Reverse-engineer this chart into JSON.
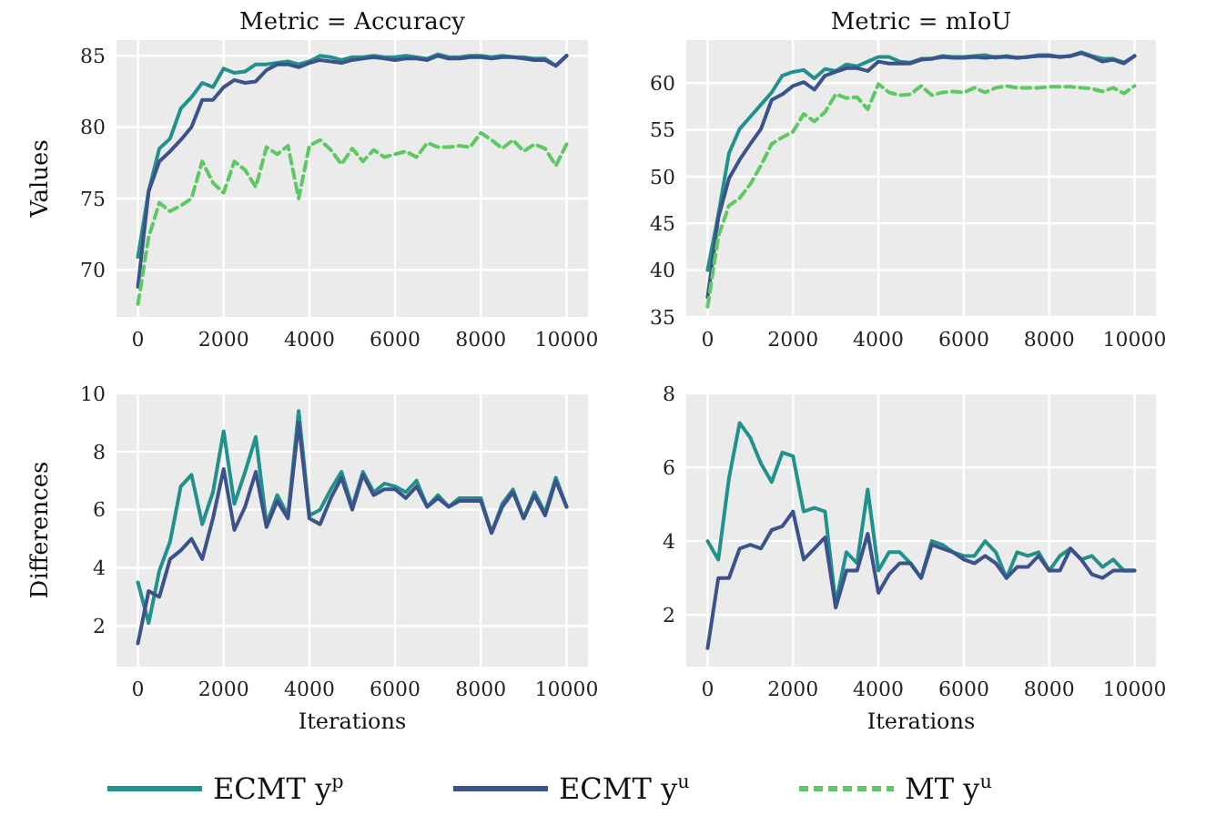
{
  "chart_data": [
    {
      "type": "line",
      "title": "Metric = Accuracy",
      "ylabel": "Values",
      "x": [
        0,
        250,
        500,
        750,
        1000,
        1250,
        1500,
        1750,
        2000,
        2250,
        2500,
        2750,
        3000,
        3250,
        3500,
        3750,
        4000,
        4250,
        4500,
        4750,
        5000,
        5250,
        5500,
        5750,
        6000,
        6250,
        6500,
        6750,
        7000,
        7250,
        7500,
        7750,
        8000,
        8250,
        8500,
        8750,
        9000,
        9250,
        9500,
        9750,
        10000
      ],
      "xlim": [
        -500,
        10500
      ],
      "xticks": [
        0,
        2000,
        4000,
        6000,
        8000,
        10000
      ],
      "ylim": [
        66.7,
        86.1
      ],
      "yticks": [
        70,
        75,
        80,
        85
      ],
      "grid": true,
      "legend": "bottom",
      "series": [
        {
          "name": "ECMT y$^{p}$",
          "color": "#21918c",
          "values": [
            70.9,
            75.5,
            78.5,
            79.2,
            81.3,
            82.1,
            83.1,
            82.8,
            84.1,
            83.8,
            83.9,
            84.4,
            84.4,
            84.5,
            84.6,
            84.4,
            84.6,
            85.0,
            84.9,
            84.7,
            84.9,
            84.9,
            85.0,
            84.9,
            84.9,
            85.0,
            84.9,
            84.8,
            85.1,
            84.9,
            84.9,
            85.0,
            85.0,
            84.9,
            85.0,
            84.9,
            84.9,
            84.8,
            84.8,
            84.3,
            85.0
          ]
        },
        {
          "name": "ECMT y$^{u}$",
          "color": "#3b528b",
          "values": [
            68.8,
            75.5,
            77.6,
            78.3,
            79.1,
            80.0,
            81.9,
            81.9,
            82.8,
            83.3,
            83.1,
            83.2,
            84.0,
            84.4,
            84.4,
            84.2,
            84.5,
            84.7,
            84.6,
            84.5,
            84.7,
            84.8,
            84.9,
            84.8,
            84.7,
            84.8,
            84.8,
            84.7,
            85.0,
            84.8,
            84.8,
            84.9,
            84.9,
            84.8,
            84.9,
            84.9,
            84.8,
            84.7,
            84.7,
            84.3,
            85.0
          ]
        },
        {
          "name": "MT y$^{u}$",
          "color": "#5ec962",
          "line_style": "dashed",
          "values": [
            67.6,
            72.3,
            74.7,
            74.1,
            74.5,
            75.0,
            77.6,
            76.1,
            75.4,
            77.6,
            77.0,
            75.8,
            78.6,
            78.1,
            78.7,
            75.0,
            78.7,
            79.1,
            78.4,
            77.4,
            78.5,
            77.6,
            78.4,
            77.9,
            78.1,
            78.3,
            77.9,
            78.9,
            78.6,
            78.6,
            78.7,
            78.6,
            79.6,
            79.1,
            78.5,
            79.1,
            78.3,
            78.8,
            78.5,
            77.3,
            78.8
          ]
        }
      ]
    },
    {
      "type": "line",
      "title": "Metric = mIoU",
      "x": [
        0,
        250,
        500,
        750,
        1000,
        1250,
        1500,
        1750,
        2000,
        2250,
        2500,
        2750,
        3000,
        3250,
        3500,
        3750,
        4000,
        4250,
        4500,
        4750,
        5000,
        5250,
        5500,
        5750,
        6000,
        6250,
        6500,
        6750,
        7000,
        7250,
        7500,
        7750,
        8000,
        8250,
        8500,
        8750,
        9000,
        9250,
        9500,
        9750,
        10000
      ],
      "xlim": [
        -500,
        10500
      ],
      "xticks": [
        0,
        2000,
        4000,
        6000,
        8000,
        10000
      ],
      "ylim": [
        35,
        64.6
      ],
      "yticks": [
        35,
        40,
        45,
        50,
        55,
        60
      ],
      "grid": true,
      "series": [
        {
          "color": "#21918c",
          "values": [
            40.0,
            45.9,
            52.5,
            55.1,
            56.4,
            57.7,
            59.0,
            60.8,
            61.2,
            61.4,
            60.5,
            61.5,
            61.3,
            62.0,
            61.8,
            62.3,
            62.8,
            62.8,
            62.3,
            62.2,
            62.6,
            62.6,
            62.9,
            62.8,
            62.8,
            62.9,
            63.0,
            62.7,
            62.9,
            62.7,
            62.8,
            63.0,
            63.0,
            62.8,
            62.9,
            63.3,
            62.9,
            62.6,
            62.6,
            62.2,
            62.9
          ]
        },
        {
          "color": "#3b528b",
          "values": [
            37.1,
            45.6,
            49.8,
            51.8,
            53.5,
            55.1,
            58.2,
            58.8,
            59.7,
            60.1,
            59.3,
            60.8,
            61.2,
            61.6,
            61.6,
            61.3,
            62.3,
            62.1,
            62.1,
            62.1,
            62.5,
            62.6,
            62.8,
            62.7,
            62.7,
            62.8,
            62.7,
            62.8,
            62.8,
            62.7,
            62.8,
            62.9,
            62.9,
            62.8,
            62.9,
            63.2,
            62.8,
            62.3,
            62.5,
            62.1,
            62.9
          ]
        },
        {
          "color": "#5ec962",
          "line_style": "dashed",
          "values": [
            36.1,
            43.6,
            46.9,
            47.7,
            49.2,
            51.2,
            53.5,
            54.2,
            54.8,
            56.7,
            55.9,
            56.9,
            58.8,
            58.4,
            58.5,
            57.2,
            59.9,
            59.0,
            58.7,
            58.8,
            59.7,
            58.7,
            59.0,
            59.1,
            59.0,
            59.5,
            59.0,
            59.5,
            59.7,
            59.5,
            59.5,
            59.5,
            59.6,
            59.6,
            59.6,
            59.5,
            59.4,
            59.1,
            59.5,
            58.9,
            59.7
          ]
        }
      ]
    },
    {
      "type": "line",
      "ylabel": "Differences",
      "xlabel": "Iterations",
      "x": [
        0,
        250,
        500,
        750,
        1000,
        1250,
        1500,
        1750,
        2000,
        2250,
        2500,
        2750,
        3000,
        3250,
        3500,
        3750,
        4000,
        4250,
        4500,
        4750,
        5000,
        5250,
        5500,
        5750,
        6000,
        6250,
        6500,
        6750,
        7000,
        7250,
        7500,
        7750,
        8000,
        8250,
        8500,
        8750,
        9000,
        9250,
        9500,
        9750,
        10000
      ],
      "xlim": [
        -500,
        10500
      ],
      "xticks": [
        0,
        2000,
        4000,
        6000,
        8000,
        10000
      ],
      "ylim": [
        0.6,
        10
      ],
      "yticks": [
        2,
        4,
        6,
        8,
        10
      ],
      "grid": true,
      "series": [
        {
          "color": "#21918c",
          "values": [
            3.5,
            2.1,
            3.9,
            4.9,
            6.8,
            7.2,
            5.5,
            6.6,
            8.7,
            6.2,
            7.3,
            8.5,
            5.5,
            6.5,
            5.8,
            9.4,
            5.8,
            6.0,
            6.7,
            7.3,
            6.1,
            7.3,
            6.6,
            6.9,
            6.8,
            6.6,
            7.0,
            6.1,
            6.5,
            6.1,
            6.4,
            6.4,
            6.4,
            5.2,
            6.2,
            6.7,
            5.7,
            6.6,
            5.9,
            7.1,
            6.1
          ]
        },
        {
          "color": "#3b528b",
          "values": [
            1.4,
            3.2,
            3.0,
            4.3,
            4.6,
            5.0,
            4.3,
            5.7,
            7.4,
            5.3,
            6.1,
            7.3,
            5.4,
            6.3,
            5.7,
            9.0,
            5.7,
            5.5,
            6.4,
            7.1,
            6.0,
            7.2,
            6.5,
            6.7,
            6.7,
            6.4,
            6.8,
            6.1,
            6.4,
            6.1,
            6.3,
            6.3,
            6.3,
            5.2,
            6.1,
            6.6,
            5.7,
            6.5,
            5.8,
            7.0,
            6.1
          ]
        }
      ]
    },
    {
      "type": "line",
      "xlabel": "Iterations",
      "x": [
        0,
        250,
        500,
        750,
        1000,
        1250,
        1500,
        1750,
        2000,
        2250,
        2500,
        2750,
        3000,
        3250,
        3500,
        3750,
        4000,
        4250,
        4500,
        4750,
        5000,
        5250,
        5500,
        5750,
        6000,
        6250,
        6500,
        6750,
        7000,
        7250,
        7500,
        7750,
        8000,
        8250,
        8500,
        8750,
        9000,
        9250,
        9500,
        9750,
        10000
      ],
      "xlim": [
        -500,
        10500
      ],
      "xticks": [
        0,
        2000,
        4000,
        6000,
        8000,
        10000
      ],
      "ylim": [
        0.6,
        8
      ],
      "yticks": [
        2,
        4,
        6,
        8
      ],
      "grid": true,
      "series": [
        {
          "color": "#21918c",
          "values": [
            4.0,
            3.5,
            5.7,
            7.2,
            6.8,
            6.1,
            5.6,
            6.4,
            6.3,
            4.8,
            4.9,
            4.8,
            2.3,
            3.7,
            3.4,
            5.4,
            3.2,
            3.7,
            3.7,
            3.4,
            3.0,
            4.0,
            3.9,
            3.7,
            3.6,
            3.6,
            4.0,
            3.7,
            3.0,
            3.7,
            3.6,
            3.7,
            3.2,
            3.6,
            3.8,
            3.5,
            3.6,
            3.3,
            3.5,
            3.2,
            3.2
          ]
        },
        {
          "color": "#3b528b",
          "values": [
            1.1,
            3.0,
            3.0,
            3.8,
            3.9,
            3.8,
            4.3,
            4.4,
            4.8,
            3.5,
            3.8,
            4.1,
            2.2,
            3.2,
            3.2,
            4.2,
            2.6,
            3.1,
            3.4,
            3.4,
            3.0,
            3.9,
            3.8,
            3.7,
            3.5,
            3.4,
            3.6,
            3.4,
            3.0,
            3.3,
            3.3,
            3.6,
            3.2,
            3.2,
            3.8,
            3.5,
            3.1,
            3.0,
            3.2,
            3.2,
            3.2
          ]
        }
      ]
    }
  ]
}
